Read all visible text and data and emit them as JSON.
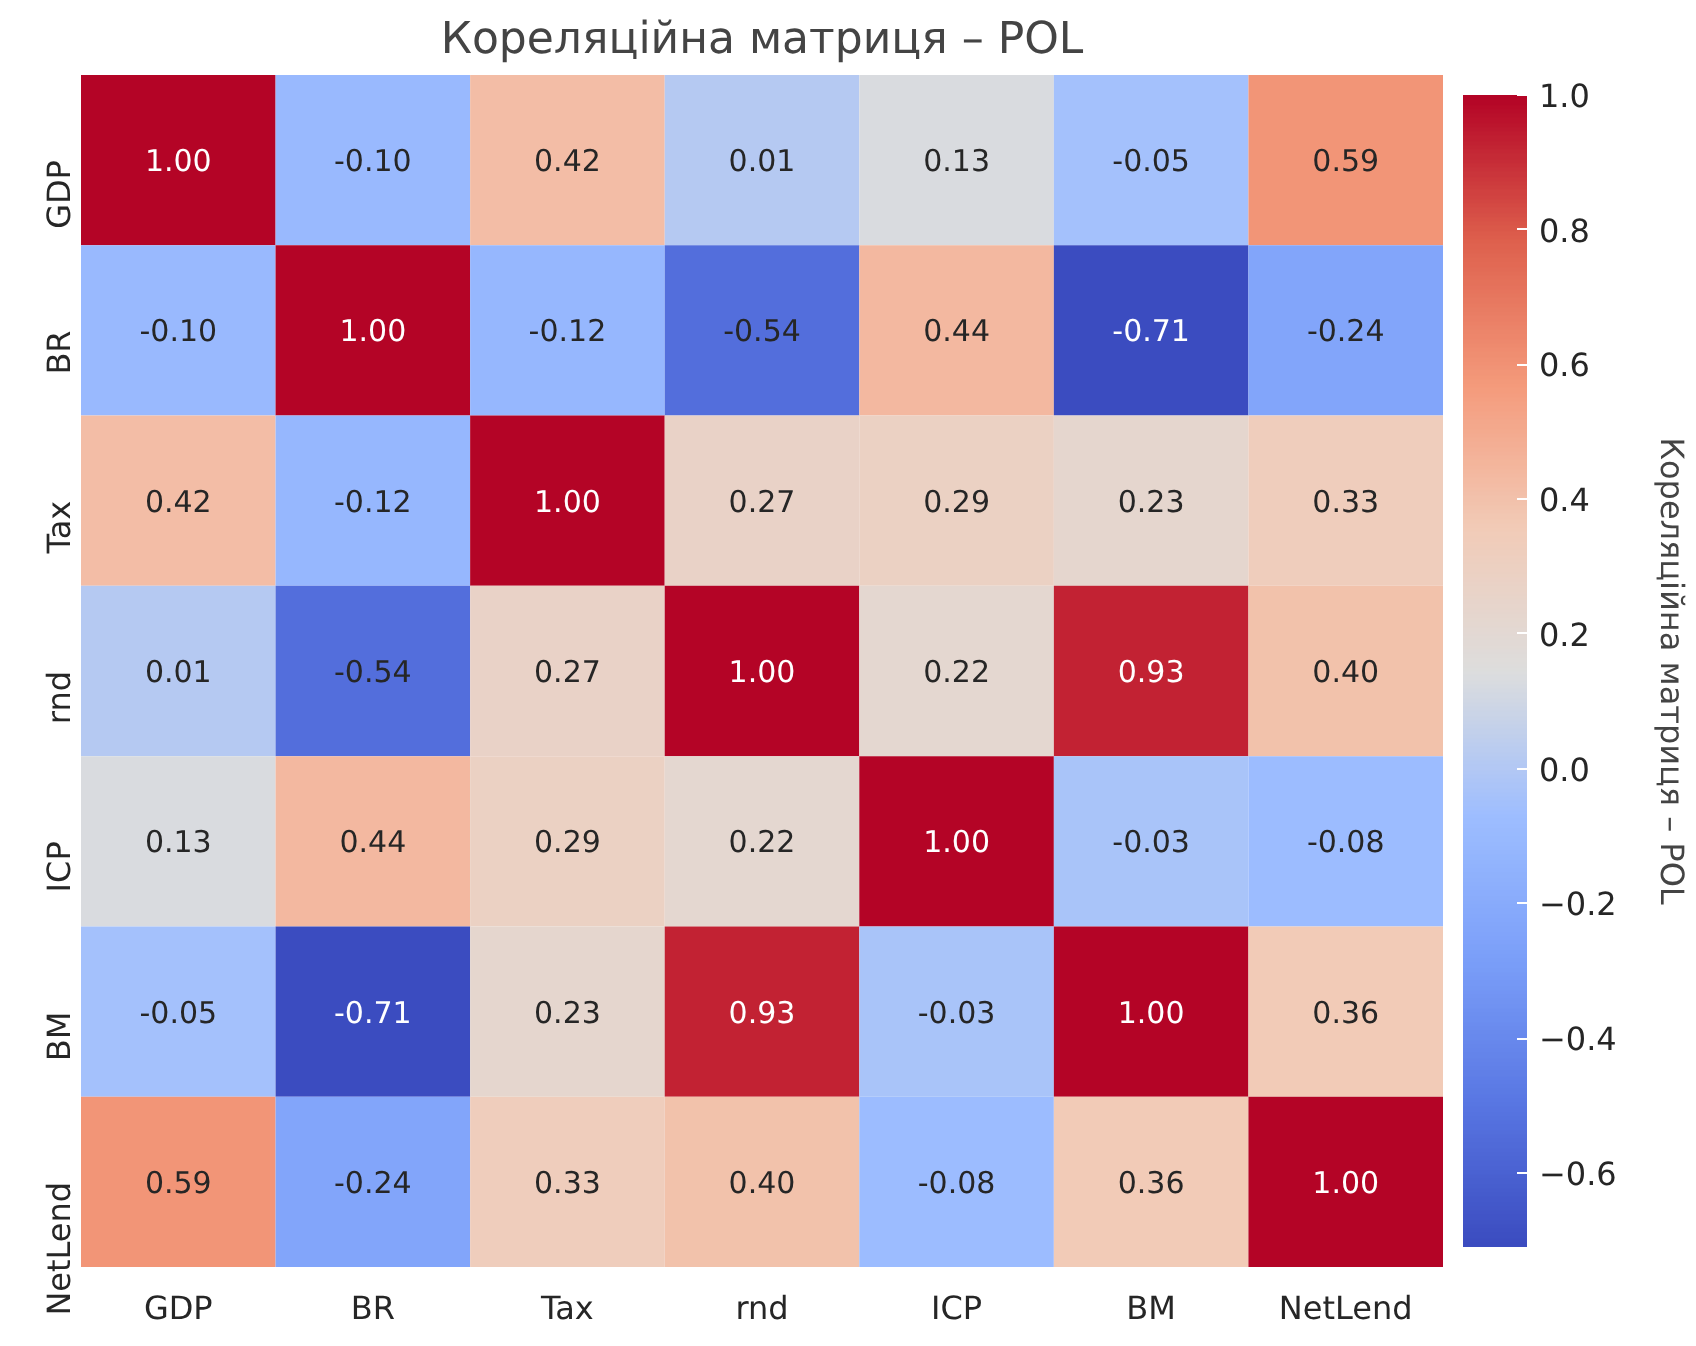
{
  "chart_data": {
    "type": "heatmap",
    "title": "Кореляційна матриця – POL",
    "clabel": "Кореляційна матриця – POL",
    "categories": [
      "GDP",
      "BR",
      "Tax",
      "rnd",
      "ICP",
      "BM",
      "NetLend"
    ],
    "y_categories": [
      "GDP",
      "BR",
      "Tax",
      "rnd",
      "ICP",
      "BM",
      "NetLend"
    ],
    "cells": [
      [
        1.0,
        -0.1,
        0.42,
        0.01,
        0.13,
        -0.05,
        0.59
      ],
      [
        -0.1,
        1.0,
        -0.12,
        -0.54,
        0.44,
        -0.71,
        -0.24
      ],
      [
        0.42,
        -0.12,
        1.0,
        0.27,
        0.29,
        0.23,
        0.33
      ],
      [
        0.01,
        -0.54,
        0.27,
        1.0,
        0.22,
        0.93,
        0.4
      ],
      [
        0.13,
        0.44,
        0.29,
        0.22,
        1.0,
        -0.03,
        -0.08
      ],
      [
        -0.05,
        -0.71,
        0.23,
        0.93,
        -0.03,
        1.0,
        0.36
      ],
      [
        0.59,
        -0.24,
        0.33,
        0.4,
        -0.08,
        0.36,
        1.0
      ]
    ],
    "cell_labels": [
      [
        "1.00",
        "-0.10",
        "0.42",
        "0.01",
        "0.13",
        "-0.05",
        "0.59"
      ],
      [
        "-0.10",
        "1.00",
        "-0.12",
        "-0.54",
        "0.44",
        "-0.71",
        "-0.24"
      ],
      [
        "0.42",
        "-0.12",
        "1.00",
        "0.27",
        "0.29",
        "0.23",
        "0.33"
      ],
      [
        "0.01",
        "-0.54",
        "0.27",
        "1.00",
        "0.22",
        "0.93",
        "0.40"
      ],
      [
        "0.13",
        "0.44",
        "0.29",
        "0.22",
        "1.00",
        "-0.03",
        "-0.08"
      ],
      [
        "-0.05",
        "-0.71",
        "0.23",
        "0.93",
        "-0.03",
        "1.00",
        "0.36"
      ],
      [
        "0.59",
        "-0.24",
        "0.33",
        "0.40",
        "-0.08",
        "0.36",
        "1.00"
      ]
    ],
    "clim": [
      -0.71,
      1.0
    ],
    "cticks": [
      {
        "value": -0.6,
        "label": "−0.6"
      },
      {
        "value": -0.4,
        "label": "−0.4"
      },
      {
        "value": -0.2,
        "label": "−0.2"
      },
      {
        "value": 0.0,
        "label": "0.0"
      },
      0.2,
      0.4,
      0.6,
      0.8,
      {
        "value": 1.0,
        "label": "1.0"
      }
    ],
    "data_labels": true
  }
}
